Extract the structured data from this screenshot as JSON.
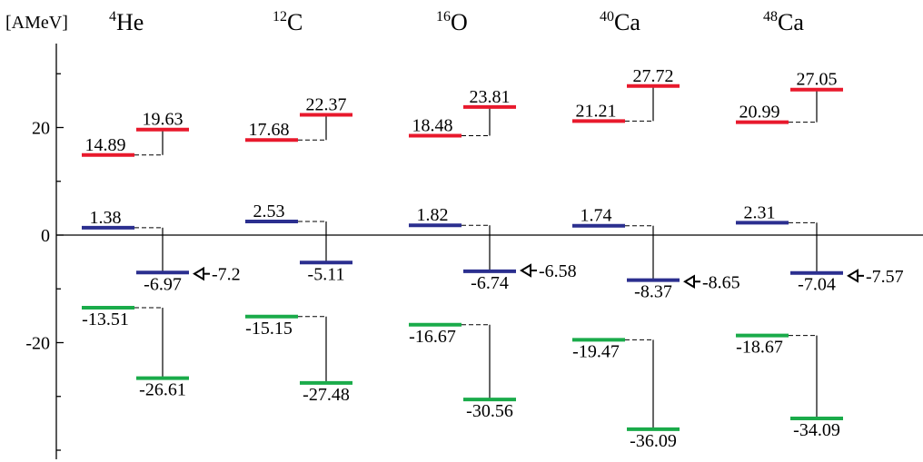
{
  "unit_label": "[AMeV]",
  "y_ticks": [
    {
      "value": 20,
      "label": "20"
    },
    {
      "value": 0,
      "label": "0"
    },
    {
      "value": -20,
      "label": "-20"
    }
  ],
  "colors": {
    "upper": "#e8192c",
    "middle": "#2b2f8f",
    "lower": "#1aab4a",
    "line": "#000000"
  },
  "nuclei": [
    {
      "mass": "4",
      "symbol": "He",
      "levels": {
        "upper": {
          "left": 14.89,
          "right": 19.63,
          "left_label": "14.89",
          "right_label": "19.63"
        },
        "middle": {
          "left": 1.38,
          "right": -6.97,
          "left_label": "1.38",
          "right_label": "-6.97"
        },
        "lower": {
          "left": -13.51,
          "right": -26.61,
          "left_label": "-13.51",
          "right_label": "-26.61"
        }
      },
      "arrow": {
        "value": -7.2,
        "label": "-7.2"
      }
    },
    {
      "mass": "12",
      "symbol": "C",
      "levels": {
        "upper": {
          "left": 17.68,
          "right": 22.37,
          "left_label": "17.68",
          "right_label": "22.37"
        },
        "middle": {
          "left": 2.53,
          "right": -5.11,
          "left_label": "2.53",
          "right_label": "-5.11"
        },
        "lower": {
          "left": -15.15,
          "right": -27.48,
          "left_label": "-15.15",
          "right_label": "-27.48"
        }
      },
      "arrow": null
    },
    {
      "mass": "16",
      "symbol": "O",
      "levels": {
        "upper": {
          "left": 18.48,
          "right": 23.81,
          "left_label": "18.48",
          "right_label": "23.81"
        },
        "middle": {
          "left": 1.82,
          "right": -6.74,
          "left_label": "1.82",
          "right_label": "-6.74"
        },
        "lower": {
          "left": -16.67,
          "right": -30.56,
          "left_label": "-16.67",
          "right_label": "-30.56"
        }
      },
      "arrow": {
        "value": -6.58,
        "label": "-6.58"
      }
    },
    {
      "mass": "40",
      "symbol": "Ca",
      "levels": {
        "upper": {
          "left": 21.21,
          "right": 27.72,
          "left_label": "21.21",
          "right_label": "27.72"
        },
        "middle": {
          "left": 1.74,
          "right": -8.37,
          "left_label": "1.74",
          "right_label": "-8.37"
        },
        "lower": {
          "left": -19.47,
          "right": -36.09,
          "left_label": "-19.47",
          "right_label": "-36.09"
        }
      },
      "arrow": {
        "value": -8.65,
        "label": "-8.65"
      }
    },
    {
      "mass": "48",
      "symbol": "Ca",
      "levels": {
        "upper": {
          "left": 20.99,
          "right": 27.05,
          "left_label": "20.99",
          "right_label": "27.05"
        },
        "middle": {
          "left": 2.31,
          "right": -7.04,
          "left_label": "2.31",
          "right_label": "-7.04"
        },
        "lower": {
          "left": -18.67,
          "right": -34.09,
          "left_label": "-18.67",
          "right_label": "-34.09"
        }
      },
      "arrow": {
        "value": -7.57,
        "label": "-7.57"
      }
    }
  ]
}
